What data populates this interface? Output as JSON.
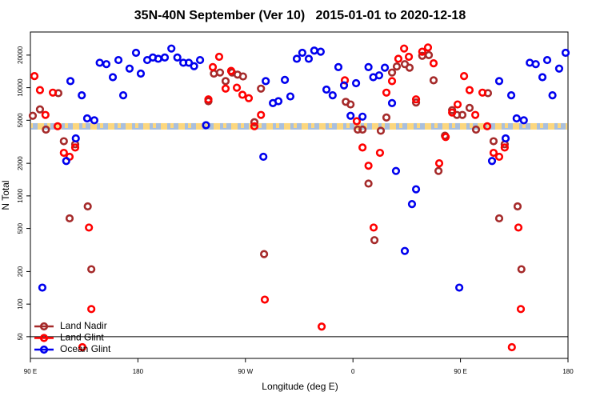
{
  "chart_data": {
    "type": "scatter",
    "title": "35N-40N September (Ver 10)   2015-01-01 to 2020-12-18",
    "x_label": "Longitude (deg E)",
    "y_label": "N Total",
    "xlim": [
      90,
      540
    ],
    "ylim": [
      31.5,
      32700
    ],
    "log_y": true,
    "xticks": [
      {
        "value": 90,
        "label": "90 E"
      },
      180,
      {
        "value": 270,
        "label": "90 W"
      },
      {
        "value": 360,
        "label": "0"
      },
      {
        "value": 450,
        "label": "90 E"
      },
      {
        "value": 540,
        "label": "180"
      }
    ],
    "yticks": [
      50,
      100,
      200,
      500,
      1000,
      2000,
      5000,
      10000,
      20000
    ],
    "hline": 50,
    "band": {
      "ylim": [
        4100,
        4700
      ],
      "colors": [
        "#a9bfdd",
        "#fcd77e"
      ]
    },
    "legend": "lower left",
    "series": [
      {
        "name": "Land Nadir",
        "color": "#a52a2a",
        "x": [
          92,
          98,
          103,
          113.4,
          118,
          122.8,
          127.5,
          138,
          141,
          239,
          243.6,
          248.7,
          253.4,
          258.8,
          263.4,
          268,
          277.5,
          283,
          285.6,
          354,
          358,
          364,
          368,
          373,
          378,
          383.3,
          388,
          392.7,
          396.7,
          403.4,
          407.4,
          412.8,
          418,
          423.5,
          427.5,
          431.6,
          437,
          443,
          447,
          451.6,
          457.6,
          463,
          473,
          477.7,
          482.4,
          487,
          497.8,
          501
        ],
        "values": [
          5500,
          6300,
          4100,
          8900,
          3200,
          620,
          3000,
          800,
          210,
          7500,
          13500,
          13800,
          11500,
          13800,
          13200,
          12700,
          4800,
          9800,
          290,
          7400,
          7000,
          4100,
          4100,
          1300,
          390,
          4000,
          5300,
          13800,
          15700,
          16500,
          15300,
          7300,
          19700,
          20000,
          11700,
          1700,
          3600,
          6200,
          5600,
          5600,
          6500,
          4100,
          8900,
          3200,
          620,
          3000,
          800,
          210
        ]
      },
      {
        "name": "Land Glint",
        "color": "#ff0000",
        "x": [
          93.4,
          98,
          102.6,
          108.8,
          112.8,
          118,
          122.8,
          127.5,
          133.5,
          139,
          141,
          239,
          242.7,
          248,
          253.4,
          258,
          262.8,
          267.5,
          272.8,
          277.5,
          283,
          286.2,
          333.8,
          353.2,
          363.2,
          368,
          373,
          377.3,
          382.6,
          388,
          392.7,
          398,
          402.8,
          406.8,
          412.8,
          418,
          422.8,
          427.5,
          432.2,
          437.6,
          443,
          447.6,
          453,
          457.6,
          462.4,
          468.4,
          472.4,
          477.7,
          482.4,
          487,
          493,
          498.5,
          500.5
        ],
        "values": [
          12800,
          9500,
          5600,
          9000,
          4400,
          2500,
          2300,
          2800,
          40,
          510,
          90,
          7800,
          15500,
          19300,
          9800,
          14300,
          10000,
          8600,
          8000,
          4400,
          5600,
          110,
          62,
          11700,
          4900,
          2800,
          1900,
          510,
          2500,
          9000,
          11500,
          18500,
          23000,
          19300,
          7800,
          21500,
          23500,
          16800,
          2000,
          3500,
          5900,
          7000,
          12800,
          9500,
          5600,
          9000,
          4400,
          2500,
          2300,
          2800,
          40,
          510,
          90
        ]
      },
      {
        "name": "Ocean Glint",
        "color": "#0000ee",
        "x": [
          100,
          120,
          123.5,
          128,
          133,
          137.5,
          143.5,
          148,
          153.6,
          159,
          163.7,
          167.7,
          173,
          178.4,
          182.4,
          187.8,
          192.5,
          197,
          202.5,
          208,
          213,
          218,
          222.6,
          227,
          232,
          237,
          285,
          287,
          293,
          297.6,
          303,
          307.6,
          313,
          317.6,
          323,
          327.6,
          333,
          337.8,
          343,
          347.8,
          352.5,
          358,
          362.6,
          368,
          373,
          377,
          381.9,
          386.7,
          392.7,
          396,
          403.4,
          409.4,
          412.8,
          449,
          476.4,
          482.4,
          487.8,
          492.5,
          497,
          503,
          508,
          513,
          518.6,
          522.6,
          527,
          532.6,
          538
        ],
        "values": [
          142,
          2100,
          11500,
          3400,
          8500,
          5200,
          5000,
          17000,
          16500,
          12500,
          18000,
          8500,
          15000,
          21000,
          13500,
          18000,
          19000,
          18500,
          19000,
          23000,
          19000,
          17000,
          17000,
          15800,
          18000,
          4500,
          2300,
          11500,
          7200,
          7500,
          11800,
          8300,
          18500,
          21000,
          18500,
          22000,
          21500,
          9600,
          8500,
          15500,
          10500,
          5500,
          11000,
          5400,
          15500,
          12500,
          13000,
          15300,
          7200,
          1700,
          310,
          840,
          1150,
          142,
          2100,
          11500,
          3400,
          8500,
          5200,
          5000,
          17000,
          16500,
          12500,
          18000,
          8500,
          15000,
          21000
        ]
      }
    ]
  }
}
